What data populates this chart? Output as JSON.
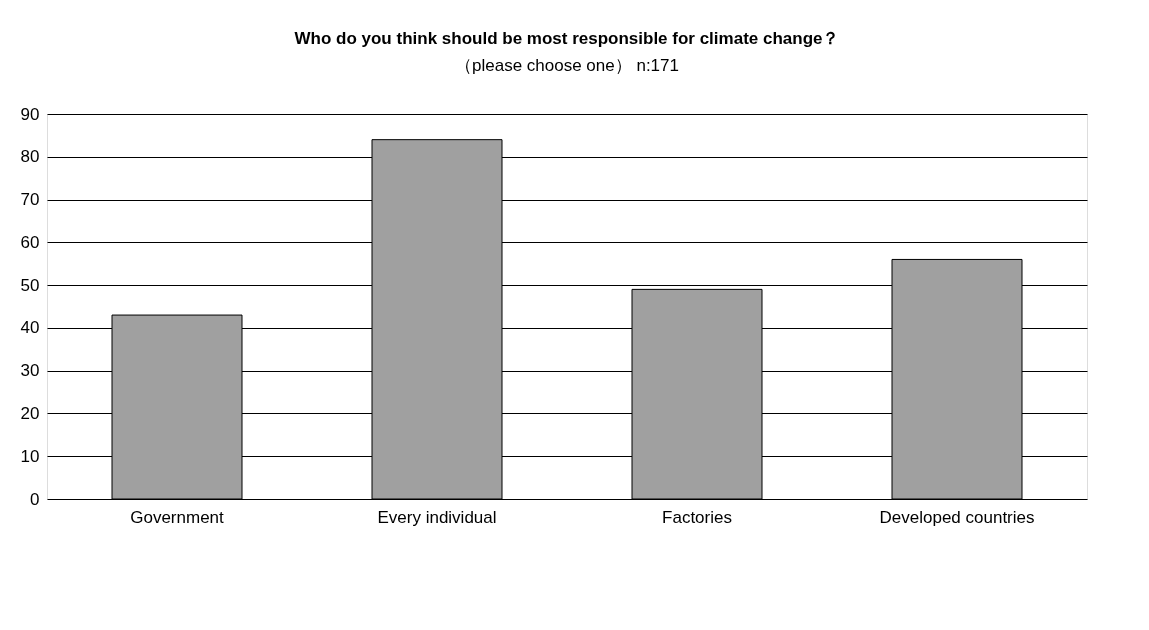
{
  "chart_data": {
    "type": "bar",
    "title": "Who do you think should be most responsible for climate change？",
    "subtitle": "（please choose one） n:171",
    "categories": [
      "Government",
      "Every individual",
      "Factories",
      "Developed countries"
    ],
    "values": [
      43,
      84,
      49,
      56
    ],
    "color": "#a0a0a0",
    "ylim": [
      0,
      90
    ],
    "yticks": [
      0,
      10,
      20,
      30,
      40,
      50,
      60,
      70,
      80,
      90
    ],
    "grid": "y"
  }
}
